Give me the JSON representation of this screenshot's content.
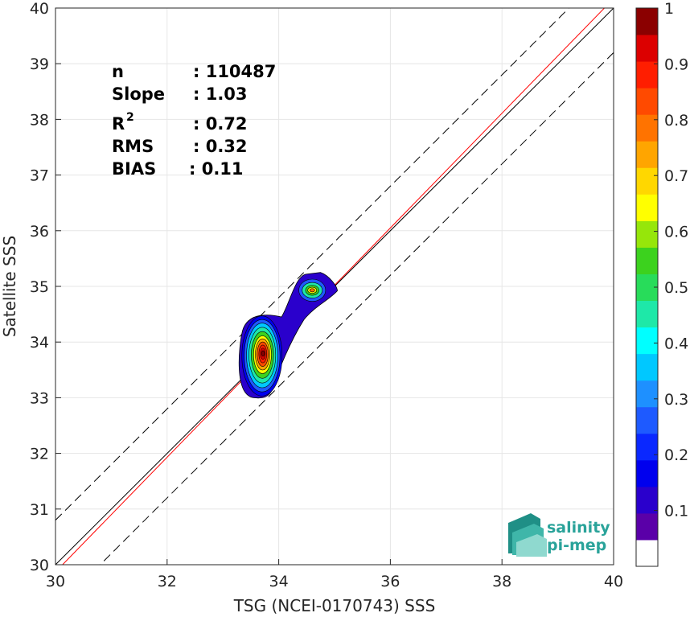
{
  "chart_data": {
    "type": "scatter",
    "subtype": "density-contour",
    "xlabel": "TSG (NCEI-0170743) SSS",
    "ylabel": "Satellite SSS",
    "xlim": [
      30,
      40
    ],
    "ylim": [
      30,
      40
    ],
    "xticks": [
      "30",
      "32",
      "34",
      "36",
      "38",
      "40"
    ],
    "yticks": [
      "30",
      "31",
      "32",
      "33",
      "34",
      "35",
      "36",
      "37",
      "38",
      "39",
      "40"
    ],
    "grid": true,
    "stats": {
      "n": {
        "label": "n",
        "value": ": 110487"
      },
      "slope": {
        "label": "Slope",
        "value": ": 1.03"
      },
      "r2": {
        "label": "R",
        "sup": "2",
        "value": ": 0.72"
      },
      "rms": {
        "label": "RMS",
        "value": ": 0.32"
      },
      "bias": {
        "label": "BIAS",
        "value": ": 0.11"
      }
    },
    "lines": {
      "identity": {
        "slope": 1,
        "intercept": 0,
        "color": "#000000",
        "style": "solid"
      },
      "regression": {
        "slope": 1.03,
        "intercept": -1.03,
        "color": "#ff0000",
        "style": "solid"
      },
      "upper_bound": {
        "slope": 1,
        "intercept": 0.8,
        "color": "#000000",
        "style": "dashed"
      },
      "lower_bound": {
        "slope": 1,
        "intercept": -0.8,
        "color": "#000000",
        "style": "dashed"
      }
    },
    "density_peaks": [
      {
        "x": 33.72,
        "y": 33.8,
        "value": 1.0
      },
      {
        "x": 34.6,
        "y": 34.93,
        "value": 0.62
      }
    ],
    "colorbar": {
      "range": [
        0,
        1
      ],
      "ticks": [
        "0.1",
        "0.2",
        "0.3",
        "0.4",
        "0.5",
        "0.6",
        "0.7",
        "0.8",
        "0.9",
        "1"
      ],
      "colors": [
        "#ffffff",
        "#5a00a8",
        "#2a00cc",
        "#0000ee",
        "#0a28ff",
        "#1e5aff",
        "#1e90ff",
        "#00c8ff",
        "#00ffff",
        "#1ee8a8",
        "#28dc5a",
        "#3cd21e",
        "#96e60a",
        "#ffff00",
        "#ffd700",
        "#ffa500",
        "#ff7300",
        "#ff4a00",
        "#ff1e00",
        "#dc0000",
        "#8b0000"
      ]
    }
  },
  "logo": {
    "line1": "salinity",
    "line2": "pi-mep"
  }
}
